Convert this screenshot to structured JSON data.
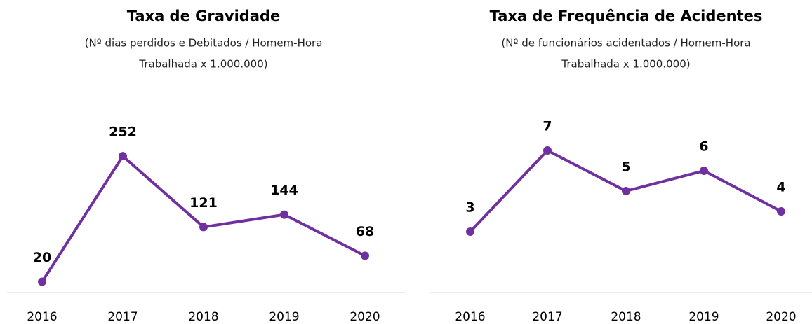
{
  "chart_data": [
    {
      "type": "line",
      "title": "Taxa de Gravidade",
      "subtitle": [
        "(Nº dias perdidos e Debitados / Homem-Hora",
        "Trabalhada x 1.000.000)"
      ],
      "categories": [
        "2016",
        "2017",
        "2018",
        "2019",
        "2020"
      ],
      "values": [
        20,
        252,
        121,
        144,
        68
      ],
      "color": "#7030a0",
      "ylim": [
        0,
        300
      ]
    },
    {
      "type": "line",
      "title": "Taxa de Frequência de Acidentes",
      "subtitle": [
        "(Nº de funcionários acidentados / Homem-Hora",
        "Trabalhada x 1.000.000)"
      ],
      "categories": [
        "2016",
        "2017",
        "2018",
        "2019",
        "2020"
      ],
      "values": [
        3,
        7,
        5,
        6,
        4
      ],
      "color": "#7030a0",
      "ylim": [
        0,
        8
      ]
    }
  ]
}
